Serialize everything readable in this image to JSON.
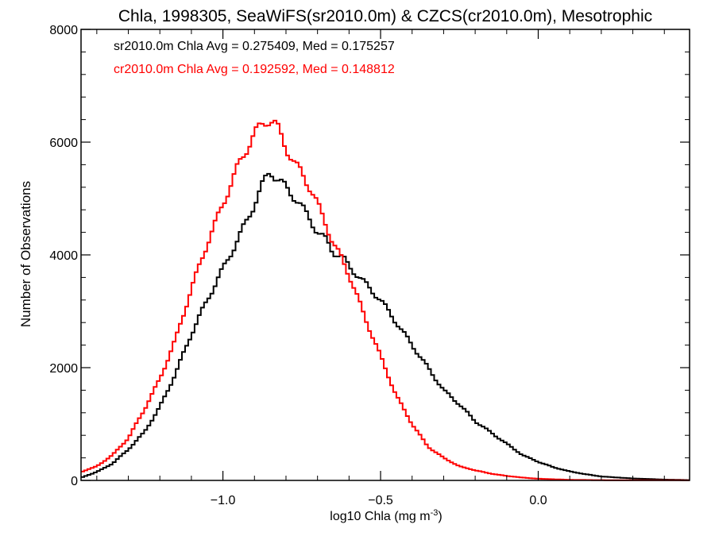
{
  "chart_data": {
    "type": "line",
    "title": "Chla, 1998305, SeaWiFS(sr2010.0m) & CZCS(cr2010.0m), Mesotrophic",
    "xlabel": "log10 Chla (mg m",
    "xlabel_sup": "-3",
    "xlabel_tail": ")",
    "ylabel": "Number of Observations",
    "xlim": [
      -1.45,
      0.48
    ],
    "ylim": [
      0,
      8000
    ],
    "xticks": [
      -1.0,
      -0.5,
      0.0
    ],
    "xtick_labels": [
      "−1.0",
      "−0.5",
      "0.0"
    ],
    "yticks": [
      0,
      2000,
      4000,
      6000,
      8000
    ],
    "ytick_labels": [
      "0",
      "2000",
      "4000",
      "6000",
      "8000"
    ],
    "annotations": [
      {
        "text": "sr2010.0m Chla Avg = 0.275409, Med = 0.175257",
        "color": "#000000"
      },
      {
        "text": "cr2010.0m Chla Avg = 0.192592, Med = 0.148812",
        "color": "#ff0000"
      }
    ],
    "style": "step",
    "series": [
      {
        "color": "#000000",
        "x": [
          -1.45,
          -1.4,
          -1.35,
          -1.3,
          -1.25,
          -1.2,
          -1.15,
          -1.1,
          -1.05,
          -1.0,
          -0.95,
          -0.9,
          -0.87,
          -0.85,
          -0.83,
          -0.8,
          -0.77,
          -0.75,
          -0.72,
          -0.7,
          -0.67,
          -0.65,
          -0.62,
          -0.6,
          -0.55,
          -0.5,
          -0.45,
          -0.4,
          -0.35,
          -0.3,
          -0.25,
          -0.2,
          -0.15,
          -0.1,
          -0.05,
          0.0,
          0.05,
          0.1,
          0.15,
          0.2,
          0.3,
          0.4,
          0.48
        ],
        "y": [
          50,
          150,
          300,
          550,
          850,
          1300,
          1900,
          2600,
          3200,
          3750,
          4300,
          4900,
          5300,
          5500,
          5350,
          5200,
          5000,
          4850,
          4600,
          4400,
          4250,
          4050,
          3950,
          3800,
          3500,
          3200,
          2800,
          2400,
          2000,
          1600,
          1350,
          1050,
          850,
          650,
          450,
          330,
          230,
          160,
          110,
          70,
          35,
          15,
          5
        ]
      },
      {
        "color": "#ff0000",
        "x": [
          -1.45,
          -1.4,
          -1.35,
          -1.3,
          -1.25,
          -1.2,
          -1.15,
          -1.1,
          -1.05,
          -1.0,
          -0.95,
          -0.9,
          -0.87,
          -0.85,
          -0.83,
          -0.8,
          -0.77,
          -0.75,
          -0.72,
          -0.7,
          -0.67,
          -0.65,
          -0.62,
          -0.6,
          -0.55,
          -0.5,
          -0.45,
          -0.4,
          -0.35,
          -0.3,
          -0.25,
          -0.2,
          -0.15,
          -0.1,
          -0.05,
          0.0,
          0.05,
          0.1,
          0.2,
          0.3,
          0.48
        ],
        "y": [
          150,
          250,
          450,
          750,
          1250,
          1800,
          2500,
          3400,
          4200,
          4900,
          5600,
          6150,
          6350,
          6400,
          6300,
          5900,
          5600,
          5450,
          5150,
          4900,
          4500,
          4200,
          3900,
          3650,
          2900,
          2200,
          1500,
          1000,
          600,
          400,
          250,
          180,
          120,
          80,
          50,
          30,
          20,
          10,
          5,
          3,
          2
        ]
      }
    ]
  }
}
